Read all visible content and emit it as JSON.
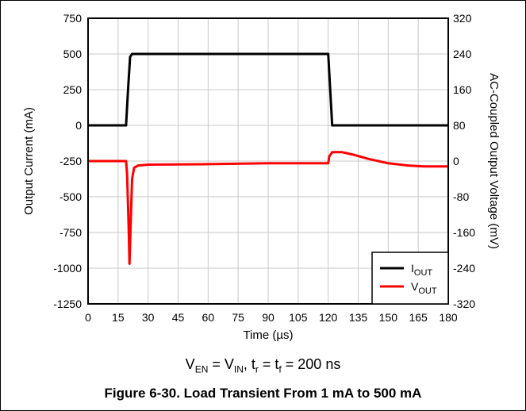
{
  "chart_data": {
    "type": "line",
    "xlabel": "Time (µs)",
    "ylabel_left": "Output Current (mA)",
    "ylabel_right": "AC-Coupled Output Voltage (mV)",
    "xlim": [
      0,
      180
    ],
    "ylim_left": [
      -1250,
      750
    ],
    "ylim_right": [
      -320,
      320
    ],
    "x_ticks": [
      "0",
      "15",
      "30",
      "45",
      "60",
      "75",
      "90",
      "105",
      "120",
      "135",
      "150",
      "165",
      "180"
    ],
    "y_left_ticks": [
      "750",
      "500",
      "250",
      "0",
      "-250",
      "-500",
      "-750",
      "-1000",
      "-1250"
    ],
    "y_right_ticks": [
      "320",
      "240",
      "160",
      "80",
      "0",
      "-80",
      "-160",
      "-240",
      "-320"
    ],
    "grid": true,
    "legend_position": "bottom-right",
    "series": [
      {
        "name": "I_OUT",
        "label_main": "I",
        "label_sub": "OUT",
        "color": "#000000",
        "axis": "left",
        "x": [
          0,
          18,
          19,
          20,
          21,
          22,
          120,
          121,
          122,
          180
        ],
        "y": [
          0,
          0,
          0,
          250,
          480,
          500,
          500,
          250,
          0,
          0
        ]
      },
      {
        "name": "V_OUT",
        "label_main": "V",
        "label_sub": "OUT",
        "color": "#ff0000",
        "axis": "right",
        "x": [
          0,
          19,
          19.5,
          20.3,
          20.7,
          21.3,
          22,
          23,
          25,
          30,
          60,
          90,
          120,
          120.5,
          122,
          127,
          132,
          140,
          150,
          160,
          168,
          175,
          180
        ],
        "y": [
          0,
          0,
          -30,
          -150,
          -230,
          -140,
          -40,
          -15,
          -10,
          -8,
          -7,
          -5,
          -5,
          10,
          20,
          20,
          15,
          5,
          -5,
          -10,
          -12,
          -12,
          -12
        ]
      }
    ],
    "annotation": "",
    "subtitle_parts": {
      "v_en_main": "V",
      "v_en_sub": "EN",
      "eq1": " = ",
      "v_in_main": "V",
      "v_in_sub": "IN",
      "comma": ", t",
      "tr_sub": "r",
      "eq2": " = t",
      "tf_sub": "f",
      "tail": " = 200 ns"
    },
    "caption": "Figure 6-30. Load Transient From 1 mA to 500 mA"
  }
}
